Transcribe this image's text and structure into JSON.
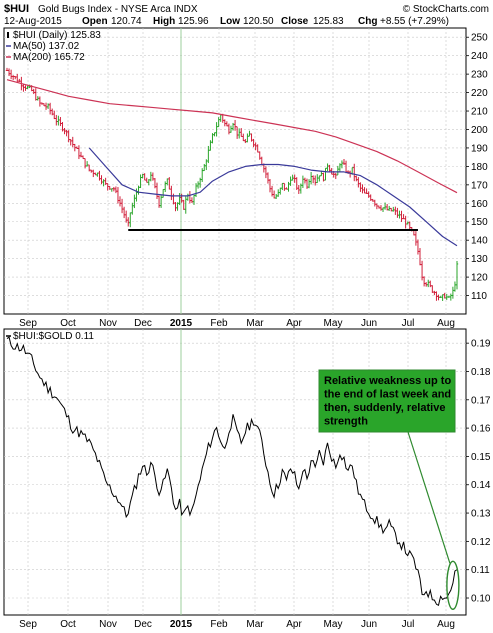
{
  "header": {
    "symbol": "$HUI",
    "description": "Gold Bugs Index - NYSE Arca INDX",
    "watermark": "© StockCharts.com",
    "date": "12-Aug-2015",
    "open_label": "Open",
    "open": "120.74",
    "high_label": "High",
    "high": "125.96",
    "low_label": "Low",
    "low": "120.50",
    "close_label": "Close",
    "close": "125.83",
    "chg_label": "Chg",
    "chg": "+8.55 (+7.29%)"
  },
  "colors": {
    "price_up": "#2aa52a",
    "price_down": "#d11f3a",
    "ma50": "#3a3a9a",
    "ma200": "#cc3355",
    "support": "#000000",
    "annotation_text": "#ffffff",
    "annotation_bg": "#2aa52a",
    "annotation_border": "#2f8a2f",
    "ellipse": "#2f8a2f",
    "year_line": "#9ccf9c"
  },
  "chart_data": [
    {
      "type": "ohlc",
      "legend": [
        {
          "label": "$HUI (Daily) 125.83"
        },
        {
          "label": "MA(50) 137.02"
        },
        {
          "label": "MA(200) 165.72"
        }
      ],
      "ylim": [
        100,
        255
      ],
      "yticks": [
        110,
        120,
        130,
        140,
        150,
        160,
        170,
        180,
        190,
        200,
        210,
        220,
        230,
        240,
        250
      ],
      "x_labels": [
        "Sep",
        "Oct",
        "Nov",
        "Dec",
        "2015",
        "Feb",
        "Mar",
        "Apr",
        "May",
        "Jun",
        "Jul",
        "Aug"
      ],
      "price_series": [
        [
          0,
          232
        ],
        [
          4,
          228
        ],
        [
          8,
          224
        ],
        [
          12,
          221
        ],
        [
          16,
          214
        ],
        [
          20,
          212
        ],
        [
          24,
          205
        ],
        [
          28,
          200
        ],
        [
          32,
          192
        ],
        [
          36,
          185
        ],
        [
          40,
          178
        ],
        [
          44,
          176
        ],
        [
          48,
          170
        ],
        [
          52,
          168
        ],
        [
          55,
          160
        ],
        [
          57,
          154
        ],
        [
          58,
          150
        ],
        [
          59,
          148
        ],
        [
          60,
          155
        ],
        [
          62,
          162
        ],
        [
          64,
          170
        ],
        [
          66,
          175
        ],
        [
          68,
          170
        ],
        [
          70,
          176
        ],
        [
          72,
          168
        ],
        [
          74,
          160
        ],
        [
          76,
          168
        ],
        [
          78,
          172
        ],
        [
          80,
          165
        ],
        [
          82,
          158
        ],
        [
          84,
          162
        ],
        [
          86,
          158
        ],
        [
          88,
          165
        ],
        [
          90,
          160
        ],
        [
          92,
          168
        ],
        [
          94,
          174
        ],
        [
          96,
          180
        ],
        [
          98,
          188
        ],
        [
          100,
          196
        ],
        [
          102,
          202
        ],
        [
          104,
          208
        ],
        [
          106,
          203
        ],
        [
          108,
          200
        ],
        [
          110,
          204
        ],
        [
          112,
          198
        ],
        [
          114,
          196
        ],
        [
          116,
          193
        ],
        [
          118,
          197
        ],
        [
          120,
          193
        ],
        [
          122,
          189
        ],
        [
          124,
          182
        ],
        [
          126,
          176
        ],
        [
          128,
          168
        ],
        [
          130,
          163
        ],
        [
          132,
          165
        ],
        [
          134,
          170
        ],
        [
          136,
          167
        ],
        [
          138,
          174
        ],
        [
          140,
          172
        ],
        [
          142,
          166
        ],
        [
          144,
          174
        ],
        [
          146,
          170
        ],
        [
          148,
          176
        ],
        [
          150,
          172
        ],
        [
          152,
          176
        ],
        [
          154,
          174
        ],
        [
          156,
          181
        ],
        [
          158,
          177
        ],
        [
          160,
          174
        ],
        [
          162,
          182
        ],
        [
          164,
          180
        ],
        [
          166,
          176
        ],
        [
          168,
          178
        ],
        [
          170,
          172
        ],
        [
          172,
          168
        ],
        [
          174,
          165
        ],
        [
          176,
          164
        ],
        [
          178,
          162
        ],
        [
          180,
          159
        ],
        [
          182,
          158
        ],
        [
          184,
          157
        ],
        [
          186,
          156
        ],
        [
          188,
          156
        ],
        [
          190,
          154
        ],
        [
          192,
          152
        ],
        [
          194,
          150
        ],
        [
          196,
          146
        ],
        [
          198,
          142
        ],
        [
          200,
          134
        ],
        [
          201,
          128
        ],
        [
          202,
          121
        ],
        [
          203,
          118
        ],
        [
          205,
          116
        ],
        [
          207,
          113
        ],
        [
          209,
          111
        ],
        [
          211,
          108
        ],
        [
          213,
          110
        ],
        [
          215,
          108
        ],
        [
          217,
          112
        ],
        [
          218,
          117
        ],
        [
          219,
          125.83
        ]
      ],
      "ma50_series": [
        [
          40,
          190
        ],
        [
          48,
          180
        ],
        [
          56,
          170
        ],
        [
          64,
          166
        ],
        [
          72,
          165
        ],
        [
          80,
          164
        ],
        [
          88,
          164
        ],
        [
          94,
          166
        ],
        [
          100,
          172
        ],
        [
          108,
          177
        ],
        [
          116,
          180
        ],
        [
          124,
          181
        ],
        [
          132,
          181
        ],
        [
          140,
          180
        ],
        [
          148,
          178
        ],
        [
          156,
          177
        ],
        [
          164,
          177
        ],
        [
          172,
          175
        ],
        [
          180,
          170
        ],
        [
          188,
          164
        ],
        [
          196,
          158
        ],
        [
          204,
          150
        ],
        [
          212,
          142
        ],
        [
          219,
          137.02
        ]
      ],
      "ma200_series": [
        [
          0,
          227
        ],
        [
          10,
          224
        ],
        [
          20,
          221
        ],
        [
          30,
          218
        ],
        [
          40,
          216
        ],
        [
          50,
          214
        ],
        [
          60,
          213
        ],
        [
          70,
          212
        ],
        [
          80,
          211
        ],
        [
          90,
          210
        ],
        [
          100,
          209
        ],
        [
          110,
          207
        ],
        [
          120,
          205
        ],
        [
          130,
          203
        ],
        [
          140,
          201
        ],
        [
          150,
          199
        ],
        [
          160,
          196
        ],
        [
          170,
          192
        ],
        [
          180,
          188
        ],
        [
          190,
          183
        ],
        [
          200,
          177
        ],
        [
          210,
          171
        ],
        [
          219,
          165.72
        ]
      ],
      "support_level": 145.5,
      "support_range": [
        59,
        200
      ]
    },
    {
      "type": "line",
      "legend": [
        {
          "label": "$HUI:$GOLD 0.11"
        }
      ],
      "ylim": [
        0.094,
        0.195
      ],
      "yticks": [
        0.1,
        0.11,
        0.12,
        0.13,
        0.14,
        0.15,
        0.16,
        0.17,
        0.18,
        0.19
      ],
      "x_labels": [
        "Sep",
        "Oct",
        "Nov",
        "Dec",
        "2015",
        "Feb",
        "Mar",
        "Apr",
        "May",
        "Jun",
        "Jul",
        "Aug"
      ],
      "series": [
        [
          0,
          0.191
        ],
        [
          4,
          0.189
        ],
        [
          8,
          0.188
        ],
        [
          12,
          0.184
        ],
        [
          16,
          0.178
        ],
        [
          20,
          0.174
        ],
        [
          24,
          0.171
        ],
        [
          28,
          0.166
        ],
        [
          32,
          0.16
        ],
        [
          36,
          0.158
        ],
        [
          40,
          0.155
        ],
        [
          44,
          0.149
        ],
        [
          48,
          0.141
        ],
        [
          52,
          0.137
        ],
        [
          55,
          0.134
        ],
        [
          58,
          0.129
        ],
        [
          60,
          0.133
        ],
        [
          62,
          0.138
        ],
        [
          64,
          0.143
        ],
        [
          66,
          0.147
        ],
        [
          68,
          0.144
        ],
        [
          70,
          0.148
        ],
        [
          72,
          0.143
        ],
        [
          74,
          0.138
        ],
        [
          76,
          0.14
        ],
        [
          78,
          0.145
        ],
        [
          80,
          0.139
        ],
        [
          82,
          0.131
        ],
        [
          84,
          0.133
        ],
        [
          86,
          0.129
        ],
        [
          88,
          0.132
        ],
        [
          90,
          0.13
        ],
        [
          92,
          0.136
        ],
        [
          94,
          0.142
        ],
        [
          96,
          0.148
        ],
        [
          98,
          0.153
        ],
        [
          100,
          0.157
        ],
        [
          102,
          0.16
        ],
        [
          104,
          0.156
        ],
        [
          106,
          0.152
        ],
        [
          108,
          0.16
        ],
        [
          110,
          0.163
        ],
        [
          112,
          0.158
        ],
        [
          114,
          0.155
        ],
        [
          116,
          0.159
        ],
        [
          118,
          0.161
        ],
        [
          120,
          0.163
        ],
        [
          122,
          0.16
        ],
        [
          124,
          0.155
        ],
        [
          126,
          0.148
        ],
        [
          128,
          0.141
        ],
        [
          130,
          0.137
        ],
        [
          132,
          0.14
        ],
        [
          134,
          0.145
        ],
        [
          136,
          0.141
        ],
        [
          138,
          0.146
        ],
        [
          140,
          0.143
        ],
        [
          142,
          0.138
        ],
        [
          144,
          0.146
        ],
        [
          146,
          0.142
        ],
        [
          148,
          0.149
        ],
        [
          150,
          0.145
        ],
        [
          152,
          0.151
        ],
        [
          154,
          0.148
        ],
        [
          156,
          0.154
        ],
        [
          158,
          0.15
        ],
        [
          160,
          0.146
        ],
        [
          162,
          0.152
        ],
        [
          164,
          0.149
        ],
        [
          166,
          0.145
        ],
        [
          168,
          0.147
        ],
        [
          170,
          0.14
        ],
        [
          172,
          0.136
        ],
        [
          174,
          0.133
        ],
        [
          176,
          0.131
        ],
        [
          178,
          0.129
        ],
        [
          180,
          0.127
        ],
        [
          182,
          0.125
        ],
        [
          184,
          0.124
        ],
        [
          186,
          0.126
        ],
        [
          188,
          0.123
        ],
        [
          190,
          0.121
        ],
        [
          192,
          0.119
        ],
        [
          194,
          0.117
        ],
        [
          196,
          0.115
        ],
        [
          198,
          0.113
        ],
        [
          200,
          0.109
        ],
        [
          201,
          0.105
        ],
        [
          202,
          0.101
        ],
        [
          204,
          0.103
        ],
        [
          206,
          0.101
        ],
        [
          208,
          0.1
        ],
        [
          210,
          0.099
        ],
        [
          212,
          0.101
        ],
        [
          214,
          0.1
        ],
        [
          216,
          0.103
        ],
        [
          217,
          0.106
        ],
        [
          218,
          0.109
        ],
        [
          219,
          0.11
        ]
      ],
      "annotation": "Relative weakness up to the end of last week and then, suddenly, relative strength"
    }
  ]
}
